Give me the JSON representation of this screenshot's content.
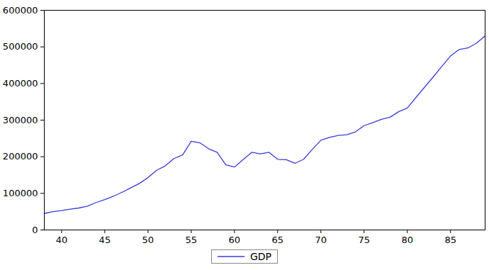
{
  "chart_data": {
    "type": "line",
    "x": [
      38,
      39,
      40,
      41,
      42,
      43,
      44,
      45,
      46,
      47,
      48,
      49,
      50,
      51,
      52,
      53,
      54,
      55,
      56,
      57,
      58,
      59,
      60,
      61,
      62,
      63,
      64,
      65,
      66,
      67,
      68,
      69,
      70,
      71,
      72,
      73,
      74,
      75,
      76,
      77,
      78,
      79,
      80,
      81,
      82,
      83,
      84,
      85,
      86,
      87,
      88,
      89
    ],
    "series": [
      {
        "name": "GDP",
        "color": "#3a3adb",
        "values": [
          45000,
          50000,
          53000,
          57000,
          60000,
          65000,
          75000,
          83000,
          92000,
          103000,
          115000,
          127000,
          143000,
          163000,
          175000,
          195000,
          205000,
          242000,
          238000,
          222000,
          212000,
          178000,
          172000,
          192000,
          212000,
          208000,
          212000,
          193000,
          192000,
          182000,
          193000,
          220000,
          245000,
          253000,
          258000,
          260000,
          268000,
          285000,
          293000,
          302000,
          308000,
          323000,
          333000,
          362000,
          390000,
          418000,
          447000,
          475000,
          493000,
          497000,
          510000,
          530000
        ]
      }
    ],
    "xlim": [
      38,
      89
    ],
    "xticks": [
      40,
      45,
      50,
      55,
      60,
      65,
      70,
      75,
      80,
      85
    ],
    "ylim": [
      0,
      600000
    ],
    "yticks": [
      0,
      100000,
      200000,
      300000,
      400000,
      500000,
      600000
    ],
    "grid": false,
    "legend": "bottom"
  }
}
